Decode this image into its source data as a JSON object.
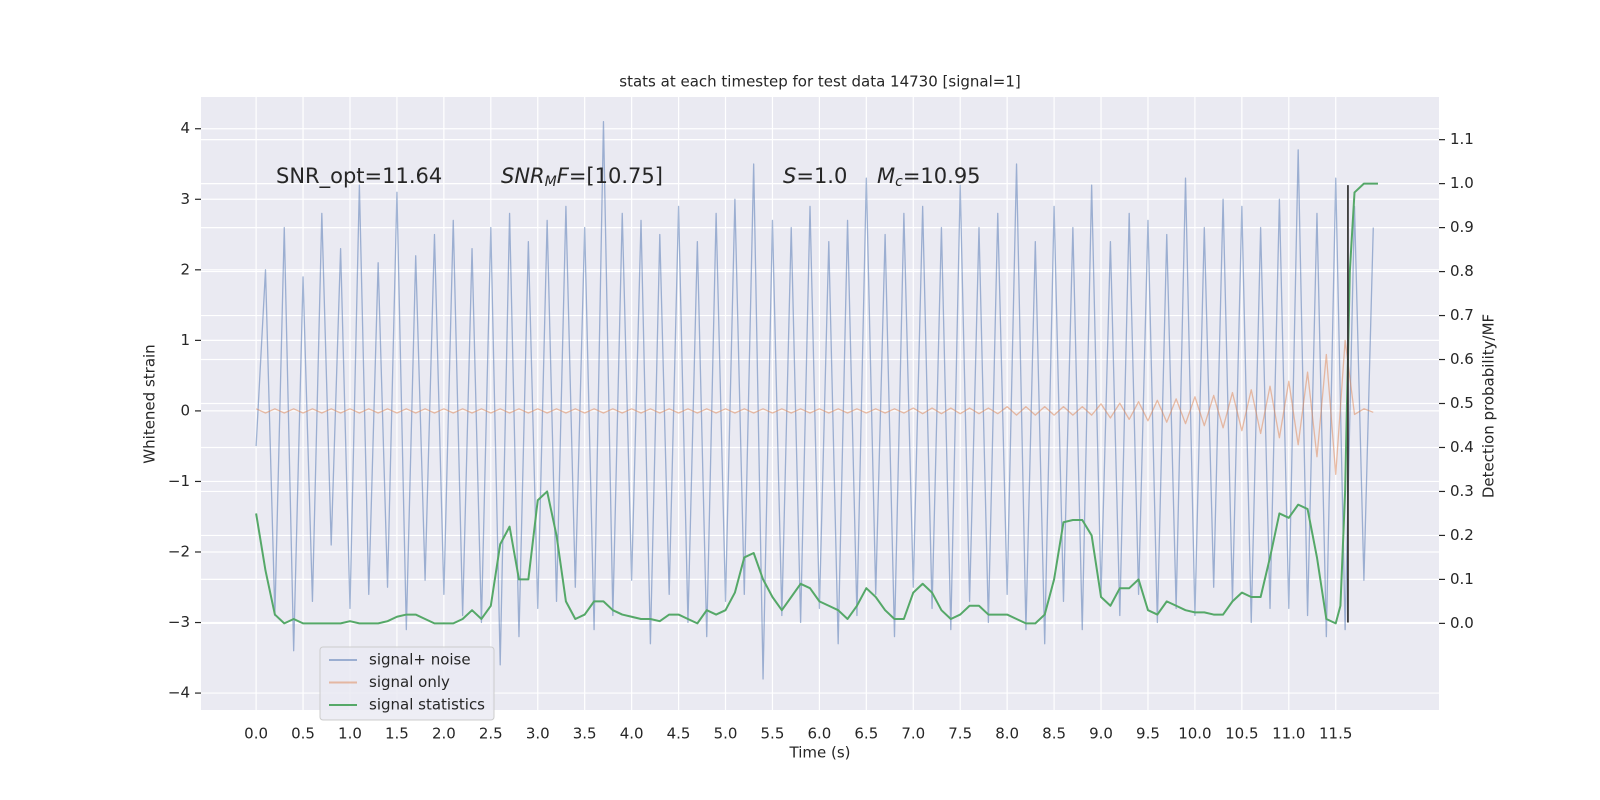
{
  "chart_data": {
    "type": "line",
    "title": "stats at each timestep for test data 14730 [signal=1]",
    "xlabel": "Time (s)",
    "ylabel": "Whitened strain",
    "y2label": "Detection probability/MF",
    "annotations": [
      {
        "text": "SNR_opt=11.64"
      },
      {
        "symbol": "SNR",
        "subscript": "M",
        "suffix": "F",
        "text": "=[10.75]"
      },
      {
        "symbol": "S",
        "text": "=1.0"
      },
      {
        "symbol": "M",
        "subscript": "c",
        "text": "=10.95"
      }
    ],
    "xlim": [
      -0.587,
      12.6
    ],
    "ylim": [
      -4.24,
      4.45
    ],
    "y2lim": [
      -0.197,
      1.197
    ],
    "xticks": [
      {
        "value": 0,
        "label": "0.0"
      },
      0.5,
      {
        "value": 1,
        "label": "1.0"
      },
      1.5,
      {
        "value": 2,
        "label": "2.0"
      },
      2.5,
      {
        "value": 3,
        "label": "3.0"
      },
      3.5,
      {
        "value": 4,
        "label": "4.0"
      },
      4.5,
      {
        "value": 5,
        "label": "5.0"
      },
      5.5,
      {
        "value": 6,
        "label": "6.0"
      },
      6.5,
      {
        "value": 7,
        "label": "7.0"
      },
      7.5,
      {
        "value": 8,
        "label": "8.0"
      },
      8.5,
      {
        "value": 9,
        "label": "9.0"
      },
      9.5,
      {
        "value": 10,
        "label": "10.0"
      },
      10.5,
      {
        "value": 11,
        "label": "11.0"
      },
      11.5
    ],
    "yticks": [
      {
        "value": -4,
        "label": "−4"
      },
      {
        "value": -3,
        "label": "−3"
      },
      {
        "value": -2,
        "label": "−2"
      },
      {
        "value": -1,
        "label": "−1"
      },
      0,
      1,
      2,
      3,
      4
    ],
    "y2ticks": [
      {
        "value": 0,
        "label": "0.0"
      },
      0.1,
      0.2,
      0.3,
      0.4,
      0.5,
      0.6,
      0.7,
      0.8,
      0.9,
      {
        "value": 1,
        "label": "1.0"
      },
      1.1
    ],
    "grid": true,
    "background": "#eaeaf2",
    "legend": "lower left",
    "x": [
      0,
      0.1,
      0.2,
      0.3,
      0.4,
      0.5,
      0.6,
      0.7,
      0.8,
      0.9,
      1,
      1.1,
      1.2,
      1.3,
      1.4,
      1.5,
      1.6,
      1.7,
      1.8,
      1.9,
      2,
      2.1,
      2.2,
      2.3,
      2.4,
      2.5,
      2.6,
      2.7,
      2.8,
      2.9,
      3,
      3.1,
      3.2,
      3.3,
      3.4,
      3.5,
      3.6,
      3.7,
      3.8,
      3.9,
      4,
      4.1,
      4.2,
      4.3,
      4.4,
      4.5,
      4.6,
      4.7,
      4.8,
      4.9,
      5,
      5.1,
      5.2,
      5.3,
      5.4,
      5.5,
      5.6,
      5.7,
      5.8,
      5.9,
      6,
      6.1,
      6.2,
      6.3,
      6.4,
      6.5,
      6.6,
      6.7,
      6.8,
      6.9,
      7,
      7.1,
      7.2,
      7.3,
      7.4,
      7.5,
      7.6,
      7.7,
      7.8,
      7.9,
      8,
      8.1,
      8.2,
      8.3,
      8.4,
      8.5,
      8.6,
      8.7,
      8.8,
      8.9,
      9,
      9.1,
      9.2,
      9.3,
      9.4,
      9.5,
      9.6,
      9.7,
      9.8,
      9.9,
      10,
      10.1,
      10.2,
      10.3,
      10.4,
      10.5,
      10.6,
      10.7,
      10.8,
      10.9,
      11,
      11.1,
      11.2,
      11.3,
      11.4,
      11.5,
      11.6,
      11.7,
      11.8,
      11.9
    ],
    "series": [
      {
        "name": "signal+ noise",
        "color": "#4c72b0",
        "alpha": 0.5,
        "values": [
          -0.5,
          2.0,
          -2.9,
          2.6,
          -3.4,
          1.9,
          -2.7,
          2.8,
          -1.9,
          2.3,
          -2.8,
          3.2,
          -2.6,
          2.1,
          -2.5,
          3.1,
          -3.1,
          2.2,
          -2.4,
          2.5,
          -2.6,
          2.7,
          -2.9,
          2.3,
          -3.0,
          2.6,
          -3.6,
          2.8,
          -3.2,
          2.4,
          -2.8,
          2.7,
          -2.7,
          2.9,
          -2.5,
          2.6,
          -3.1,
          4.1,
          -2.9,
          2.8,
          -2.4,
          2.7,
          -3.3,
          2.5,
          -2.6,
          2.9,
          -3.0,
          2.4,
          -3.2,
          2.8,
          -2.7,
          3.0,
          -2.6,
          3.5,
          -3.8,
          2.7,
          -2.9,
          2.6,
          -3.0,
          2.9,
          -2.8,
          2.4,
          -3.3,
          2.7,
          -2.9,
          3.3,
          -2.6,
          2.5,
          -3.2,
          2.8,
          -2.5,
          2.9,
          -2.8,
          2.6,
          -3.1,
          3.2,
          -2.7,
          2.6,
          -3.0,
          2.8,
          -2.6,
          3.5,
          -3.1,
          2.4,
          -3.3,
          2.9,
          -2.7,
          2.6,
          -3.1,
          3.2,
          -2.6,
          2.4,
          -2.9,
          2.8,
          -2.6,
          2.7,
          -3.0,
          2.5,
          -2.8,
          3.3,
          -2.9,
          2.6,
          -2.5,
          3.0,
          -2.7,
          2.9,
          -3.0,
          2.6,
          -2.8,
          3.0,
          -2.8,
          3.7,
          -2.9,
          2.8,
          -3.2,
          3.3,
          -3.1,
          2.9,
          -2.4,
          2.6
        ]
      },
      {
        "name": "signal only",
        "color": "#dd8452",
        "alpha": 0.5,
        "values": [
          0.03,
          -0.03,
          0.03,
          -0.03,
          0.03,
          -0.03,
          0.03,
          -0.03,
          0.03,
          -0.03,
          0.03,
          -0.03,
          0.03,
          -0.03,
          0.03,
          -0.03,
          0.03,
          -0.03,
          0.03,
          -0.03,
          0.03,
          -0.03,
          0.03,
          -0.03,
          0.03,
          -0.03,
          0.03,
          -0.03,
          0.03,
          -0.03,
          0.03,
          -0.03,
          0.03,
          -0.03,
          0.03,
          -0.03,
          0.03,
          -0.03,
          0.03,
          -0.03,
          0.03,
          -0.03,
          0.03,
          -0.03,
          0.03,
          -0.03,
          0.03,
          -0.03,
          0.03,
          -0.03,
          0.03,
          -0.03,
          0.03,
          -0.03,
          0.03,
          -0.03,
          0.03,
          -0.03,
          0.03,
          -0.03,
          0.03,
          -0.03,
          0.03,
          -0.03,
          0.03,
          -0.03,
          0.03,
          -0.03,
          0.03,
          -0.03,
          0.04,
          -0.04,
          0.04,
          -0.04,
          0.04,
          -0.04,
          0.04,
          -0.04,
          0.04,
          -0.04,
          0.06,
          -0.06,
          0.06,
          -0.06,
          0.06,
          -0.06,
          0.06,
          -0.06,
          0.06,
          -0.06,
          0.1,
          -0.1,
          0.11,
          -0.12,
          0.13,
          -0.14,
          0.15,
          -0.16,
          0.17,
          -0.18,
          0.2,
          -0.21,
          0.22,
          -0.24,
          0.26,
          -0.28,
          0.3,
          -0.32,
          0.35,
          -0.38,
          0.42,
          -0.48,
          0.55,
          -0.65,
          0.8,
          -0.9,
          1.0,
          -0.05,
          0.03,
          -0.02
        ]
      },
      {
        "name": "signal statistics",
        "color": "#55a868",
        "axis": "y2",
        "x": [
          0,
          0.1,
          0.2,
          0.3,
          0.4,
          0.5,
          0.6,
          0.7,
          0.8,
          0.9,
          1,
          1.1,
          1.2,
          1.3,
          1.4,
          1.5,
          1.6,
          1.7,
          1.8,
          1.9,
          2,
          2.1,
          2.2,
          2.3,
          2.4,
          2.5,
          2.6,
          2.7,
          2.8,
          2.9,
          3,
          3.1,
          3.2,
          3.3,
          3.4,
          3.5,
          3.6,
          3.7,
          3.8,
          3.9,
          4,
          4.1,
          4.2,
          4.3,
          4.4,
          4.5,
          4.6,
          4.7,
          4.8,
          4.9,
          5,
          5.1,
          5.2,
          5.3,
          5.4,
          5.5,
          5.6,
          5.7,
          5.8,
          5.9,
          6,
          6.1,
          6.2,
          6.3,
          6.4,
          6.5,
          6.6,
          6.7,
          6.8,
          6.9,
          7,
          7.1,
          7.2,
          7.3,
          7.4,
          7.5,
          7.6,
          7.7,
          7.8,
          7.9,
          8,
          8.1,
          8.2,
          8.3,
          8.4,
          8.5,
          8.6,
          8.7,
          8.8,
          8.9,
          9,
          9.1,
          9.2,
          9.3,
          9.4,
          9.5,
          9.6,
          9.7,
          9.8,
          9.9,
          10,
          10.1,
          10.2,
          10.3,
          10.4,
          10.5,
          10.6,
          10.7,
          10.8,
          10.9,
          11,
          11.1,
          11.2,
          11.3,
          11.4,
          11.5,
          11.55,
          11.6,
          11.65,
          11.7,
          11.8,
          11.95
        ],
        "values": [
          0.25,
          0.12,
          0.02,
          0.0,
          0.01,
          0.0,
          0.0,
          0.0,
          0.0,
          0.0,
          0.005,
          0.0,
          0.0,
          0.0,
          0.005,
          0.015,
          0.02,
          0.02,
          0.01,
          0.0,
          0.0,
          0.0,
          0.01,
          0.03,
          0.01,
          0.04,
          0.18,
          0.22,
          0.1,
          0.1,
          0.28,
          0.3,
          0.2,
          0.05,
          0.01,
          0.02,
          0.05,
          0.05,
          0.03,
          0.02,
          0.015,
          0.01,
          0.01,
          0.005,
          0.02,
          0.02,
          0.01,
          0.0,
          0.03,
          0.02,
          0.03,
          0.07,
          0.15,
          0.16,
          0.1,
          0.06,
          0.03,
          0.06,
          0.09,
          0.08,
          0.05,
          0.04,
          0.03,
          0.01,
          0.04,
          0.08,
          0.06,
          0.03,
          0.01,
          0.01,
          0.07,
          0.09,
          0.07,
          0.03,
          0.01,
          0.02,
          0.04,
          0.04,
          0.02,
          0.02,
          0.02,
          0.01,
          0.0,
          0.0,
          0.02,
          0.1,
          0.23,
          0.235,
          0.235,
          0.2,
          0.06,
          0.04,
          0.08,
          0.08,
          0.1,
          0.03,
          0.02,
          0.05,
          0.04,
          0.03,
          0.025,
          0.025,
          0.02,
          0.02,
          0.05,
          0.07,
          0.06,
          0.06,
          0.15,
          0.25,
          0.24,
          0.27,
          0.26,
          0.15,
          0.01,
          0.0,
          0.04,
          0.3,
          0.8,
          0.98,
          1.0,
          1.0
        ]
      }
    ],
    "vline": {
      "x": 11.63,
      "ymin": -3.0,
      "ymax": 3.2,
      "color": "#3a3a3a"
    }
  }
}
